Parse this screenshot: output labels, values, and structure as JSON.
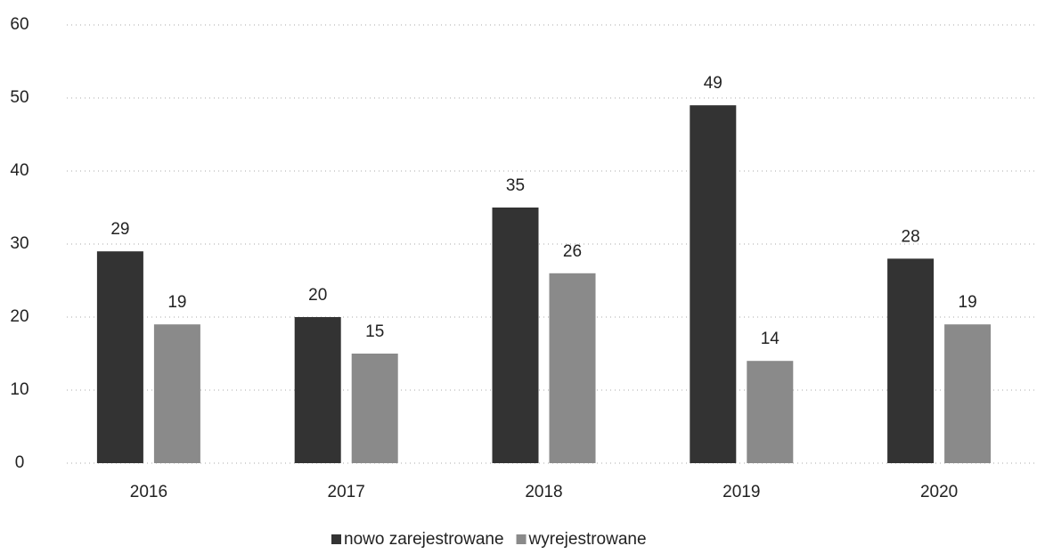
{
  "chart_data": {
    "type": "bar",
    "categories": [
      "2016",
      "2017",
      "2018",
      "2019",
      "2020"
    ],
    "series": [
      {
        "name": "nowo zarejestrowane",
        "color": "#333333",
        "values": [
          29,
          20,
          35,
          49,
          28
        ]
      },
      {
        "name": "wyrejestrowane",
        "color": "#8a8a8a",
        "values": [
          19,
          15,
          26,
          14,
          19
        ]
      }
    ],
    "ylim": [
      0,
      60
    ],
    "yticks": [
      0,
      10,
      20,
      30,
      40,
      50,
      60
    ],
    "grid": true,
    "legend": "bottom"
  }
}
